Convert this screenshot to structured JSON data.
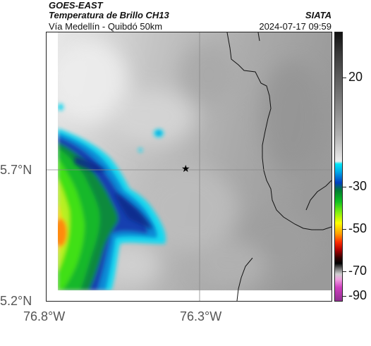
{
  "header": {
    "satellite": "GOES-EAST",
    "product": "Temperatura de Brillo CH13",
    "region": "Vía Medellín - Quibdó 50km",
    "agency": "SIATA",
    "datetime": "2024-07-17 09:59"
  },
  "axes": {
    "lat_labels": [
      "5.7°N",
      "5.2°N"
    ],
    "lon_labels": [
      "76.8°W",
      "76.3°W"
    ]
  },
  "colorbar": {
    "tick_labels": [
      "20",
      "-30",
      "-50",
      "-70",
      "-90"
    ]
  },
  "colors": {
    "background": "#ffffff",
    "border": "#222222",
    "grid": "#888888"
  },
  "marker": {
    "symbol": "★"
  }
}
